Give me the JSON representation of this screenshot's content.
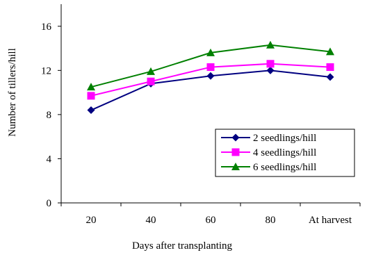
{
  "chart_data": {
    "type": "line",
    "xlabel": "Days after transplanting",
    "ylabel": "Number of tillers/hill",
    "categories": [
      "20",
      "40",
      "60",
      "80",
      "At harvest"
    ],
    "ylim": [
      0,
      18
    ],
    "yticks": [
      0,
      4,
      8,
      12,
      16
    ],
    "grid": false,
    "legend_position": "bottom-right",
    "series": [
      {
        "name": "2 seedlings/hill",
        "color": "#000080",
        "marker": "diamond",
        "values": [
          8.4,
          10.8,
          11.5,
          12.0,
          11.4
        ]
      },
      {
        "name": "4 seedlings/hill",
        "color": "#ff00ff",
        "marker": "square",
        "values": [
          9.7,
          11.0,
          12.3,
          12.6,
          12.3
        ]
      },
      {
        "name": "6 seedlings/hill",
        "color": "#008000",
        "marker": "triangle",
        "values": [
          10.5,
          11.9,
          13.6,
          14.3,
          13.7
        ]
      }
    ]
  }
}
